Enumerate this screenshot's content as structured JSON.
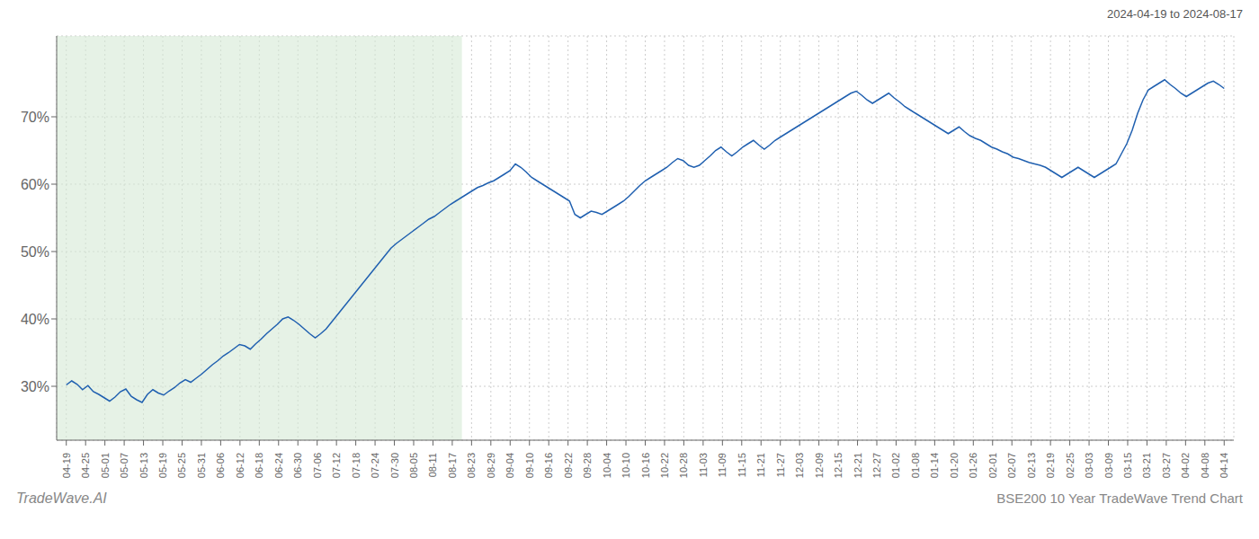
{
  "chart_data": {
    "type": "line",
    "title": "BSE200 10 Year TradeWave Trend Chart",
    "subtitle": "2024-04-19 to 2024-08-17",
    "annotations": [
      "TradeWave.AI"
    ],
    "color": "#2060b0",
    "grid": true,
    "xlim": [
      -0.5,
      60.5
    ],
    "xticks": [
      {
        "value": 0,
        "label": "04-19"
      },
      {
        "value": 1,
        "label": "04-25"
      },
      {
        "value": 2,
        "label": "05-01"
      },
      {
        "value": 3,
        "label": "05-07"
      },
      {
        "value": 4,
        "label": "05-13"
      },
      {
        "value": 5,
        "label": "05-19"
      },
      {
        "value": 6,
        "label": "05-25"
      },
      {
        "value": 7,
        "label": "05-31"
      },
      {
        "value": 8,
        "label": "06-06"
      },
      {
        "value": 9,
        "label": "06-12"
      },
      {
        "value": 10,
        "label": "06-18"
      },
      {
        "value": 11,
        "label": "06-24"
      },
      {
        "value": 12,
        "label": "06-30"
      },
      {
        "value": 13,
        "label": "07-06"
      },
      {
        "value": 14,
        "label": "07-12"
      },
      {
        "value": 15,
        "label": "07-18"
      },
      {
        "value": 16,
        "label": "07-24"
      },
      {
        "value": 17,
        "label": "07-30"
      },
      {
        "value": 18,
        "label": "08-05"
      },
      {
        "value": 19,
        "label": "08-11"
      },
      {
        "value": 20,
        "label": "08-17"
      },
      {
        "value": 21,
        "label": "08-23"
      },
      {
        "value": 22,
        "label": "08-29"
      },
      {
        "value": 23,
        "label": "09-04"
      },
      {
        "value": 24,
        "label": "09-10"
      },
      {
        "value": 25,
        "label": "09-16"
      },
      {
        "value": 26,
        "label": "09-22"
      },
      {
        "value": 27,
        "label": "09-28"
      },
      {
        "value": 28,
        "label": "10-04"
      },
      {
        "value": 29,
        "label": "10-10"
      },
      {
        "value": 30,
        "label": "10-16"
      },
      {
        "value": 31,
        "label": "10-22"
      },
      {
        "value": 32,
        "label": "10-28"
      },
      {
        "value": 33,
        "label": "11-03"
      },
      {
        "value": 34,
        "label": "11-09"
      },
      {
        "value": 35,
        "label": "11-15"
      },
      {
        "value": 36,
        "label": "11-21"
      },
      {
        "value": 37,
        "label": "11-27"
      },
      {
        "value": 38,
        "label": "12-03"
      },
      {
        "value": 39,
        "label": "12-09"
      },
      {
        "value": 40,
        "label": "12-15"
      },
      {
        "value": 41,
        "label": "12-21"
      },
      {
        "value": 42,
        "label": "12-27"
      },
      {
        "value": 43,
        "label": "01-02"
      },
      {
        "value": 44,
        "label": "01-08"
      },
      {
        "value": 45,
        "label": "01-14"
      },
      {
        "value": 46,
        "label": "01-20"
      },
      {
        "value": 47,
        "label": "01-26"
      },
      {
        "value": 48,
        "label": "02-01"
      },
      {
        "value": 49,
        "label": "02-07"
      },
      {
        "value": 50,
        "label": "02-13"
      },
      {
        "value": 51,
        "label": "02-19"
      },
      {
        "value": 52,
        "label": "02-25"
      },
      {
        "value": 53,
        "label": "03-03"
      },
      {
        "value": 54,
        "label": "03-09"
      },
      {
        "value": 55,
        "label": "03-15"
      },
      {
        "value": 56,
        "label": "03-21"
      },
      {
        "value": 57,
        "label": "03-27"
      },
      {
        "value": 58,
        "label": "04-02"
      },
      {
        "value": 59,
        "label": "04-08"
      },
      {
        "value": 60,
        "label": "04-14"
      }
    ],
    "ylim": [
      22,
      82
    ],
    "yticks": [
      {
        "value": 30,
        "label": "30%"
      },
      {
        "value": 40,
        "label": "40%"
      },
      {
        "value": 50,
        "label": "50%"
      },
      {
        "value": 60,
        "label": "60%"
      },
      {
        "value": 70,
        "label": "70%"
      }
    ],
    "shaded_region": {
      "x": [
        -0.5,
        20.5
      ],
      "color": "#d6ead6"
    },
    "x": [
      0,
      0.2804,
      0.5607,
      0.8411,
      1.1215,
      1.4019,
      1.6822,
      1.9626,
      2.243,
      2.5234,
      2.8037,
      3.0841,
      3.3645,
      3.6449,
      3.9252,
      4.2056,
      4.486,
      4.7664,
      5.0467,
      5.3271,
      5.6075,
      5.8879,
      6.1682,
      6.4486,
      6.729,
      7.0093,
      7.2897,
      7.5701,
      7.8505,
      8.1308,
      8.4112,
      8.6916,
      8.972,
      9.2523,
      9.5327,
      9.8131,
      10.0935,
      10.3738,
      10.6542,
      10.9346,
      11.215,
      11.4953,
      11.7757,
      12.0561,
      12.3364,
      12.6168,
      12.8972,
      13.1776,
      13.4579,
      13.7383,
      14.0187,
      14.2991,
      14.5794,
      14.8598,
      15.1402,
      15.4206,
      15.7009,
      15.9813,
      16.2617,
      16.5421,
      16.8224,
      17.1028,
      17.3832,
      17.6636,
      17.9439,
      18.2243,
      18.5047,
      18.785,
      19.0654,
      19.3458,
      19.6262,
      19.9065,
      20.1869,
      20.4673,
      20.7477,
      21.028,
      21.3084,
      21.5888,
      21.8692,
      22.1495,
      22.4299,
      22.7103,
      22.9907,
      23.271,
      23.5514,
      23.8318,
      24.1121,
      24.3925,
      24.6729,
      24.9533,
      25.2336,
      25.514,
      25.7944,
      26.0748,
      26.3551,
      26.6355,
      26.9159,
      27.1963,
      27.4766,
      27.757,
      28.0374,
      28.3178,
      28.5981,
      28.8785,
      29.1589,
      29.4393,
      29.7196,
      30,
      30.2804,
      30.5607,
      30.8411,
      31.1215,
      31.4019,
      31.6822,
      31.9626,
      32.243,
      32.5234,
      32.8037,
      33.0841,
      33.3645,
      33.6449,
      33.9252,
      34.2056,
      34.486,
      34.7664,
      35.0467,
      35.3271,
      35.6075,
      35.8879,
      36.1682,
      36.4486,
      36.729,
      37.0093,
      37.2897,
      37.5701,
      37.8505,
      38.1308,
      38.4112,
      38.6916,
      38.972,
      39.2523,
      39.5327,
      39.8131,
      40.0935,
      40.3738,
      40.6542,
      40.9346,
      41.215,
      41.4953,
      41.7757,
      42.0561,
      42.3364,
      42.6168,
      42.8972,
      43.1776,
      43.4579,
      43.7383,
      44.0187,
      44.2991,
      44.5794,
      44.8598,
      45.1402,
      45.4206,
      45.7009,
      45.9813,
      46.2617,
      46.5421,
      46.8224,
      47.1028,
      47.3832,
      47.6636,
      47.9439,
      48.2243,
      48.5047,
      48.785,
      49.0654,
      49.3458,
      49.6262,
      49.9065,
      50.1869,
      50.4673,
      50.7477,
      51.028,
      51.3084,
      51.5888,
      51.8692,
      52.1495,
      52.4299,
      52.7103,
      52.9907,
      53.271,
      53.5514,
      53.8318,
      54.1121,
      54.3925,
      54.6729,
      54.9533,
      55.2336,
      55.514,
      55.7944,
      56.0748,
      56.3551,
      56.6355,
      56.9159,
      57.1963,
      57.4766,
      57.757,
      58.0374,
      58.3178,
      58.5981,
      58.8785,
      59.1589,
      59.4393,
      59.7196,
      60
    ],
    "values": [
      30.2,
      30.8,
      30.3,
      29.5,
      30.1,
      29.2,
      28.8,
      28.3,
      27.8,
      28.4,
      29.2,
      29.6,
      28.5,
      28.0,
      27.6,
      28.8,
      29.5,
      29.0,
      28.7,
      29.3,
      29.8,
      30.5,
      31.0,
      30.6,
      31.2,
      31.8,
      32.5,
      33.2,
      33.8,
      34.5,
      35.0,
      35.6,
      36.2,
      36.0,
      35.5,
      36.3,
      37.0,
      37.8,
      38.5,
      39.2,
      40.0,
      40.3,
      39.8,
      39.2,
      38.5,
      37.8,
      37.2,
      37.8,
      38.5,
      39.5,
      40.5,
      41.5,
      42.5,
      43.5,
      44.5,
      45.5,
      46.5,
      47.5,
      48.5,
      49.5,
      50.5,
      51.2,
      51.8,
      52.4,
      53.0,
      53.6,
      54.2,
      54.8,
      55.2,
      55.8,
      56.4,
      57.0,
      57.5,
      58.0,
      58.5,
      59.0,
      59.5,
      59.8,
      60.2,
      60.5,
      61.0,
      61.5,
      62.0,
      63.0,
      62.5,
      61.8,
      61.0,
      60.5,
      60.0,
      59.5,
      59.0,
      58.5,
      58.0,
      57.5,
      55.5,
      55.0,
      55.5,
      56.0,
      55.8,
      55.5,
      56.0,
      56.5,
      57.0,
      57.5,
      58.2,
      59.0,
      59.8,
      60.5,
      61.0,
      61.5,
      62.0,
      62.5,
      63.2,
      63.8,
      63.5,
      62.8,
      62.5,
      62.8,
      63.5,
      64.2,
      65.0,
      65.5,
      64.8,
      64.2,
      64.8,
      65.5,
      66.0,
      66.5,
      65.8,
      65.2,
      65.8,
      66.5,
      67.0,
      67.5,
      68.0,
      68.5,
      69.0,
      69.5,
      70.0,
      70.5,
      71.0,
      71.5,
      72.0,
      72.5,
      73.0,
      73.5,
      73.8,
      73.2,
      72.5,
      72.0,
      72.5,
      73.0,
      73.5,
      72.8,
      72.2,
      71.5,
      71.0,
      70.5,
      70.0,
      69.5,
      69.0,
      68.5,
      68.0,
      67.5,
      68.0,
      68.5,
      67.8,
      67.2,
      66.8,
      66.5,
      66.0,
      65.5,
      65.2,
      64.8,
      64.5,
      64.0,
      63.8,
      63.5,
      63.2,
      63.0,
      62.8,
      62.5,
      62.0,
      61.5,
      61.0,
      61.5,
      62.0,
      62.5,
      62.0,
      61.5,
      61.0,
      61.5,
      62.0,
      62.5,
      63.0,
      64.5,
      66.0,
      68.0,
      70.5,
      72.5,
      74.0,
      74.5,
      75.0,
      75.5,
      74.8,
      74.2,
      73.5,
      73.0,
      73.5,
      74.0,
      74.5,
      75.0,
      75.3,
      74.8,
      74.2
    ]
  }
}
